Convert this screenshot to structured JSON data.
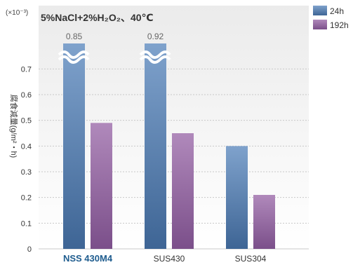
{
  "chart_data": {
    "type": "bar",
    "title": "5%NaCl+2%H₂O₂、40℃",
    "unit_label": "(×10⁻³)",
    "ylabel": "腐食減量(g/m²・h)",
    "ylim": [
      0,
      0.75
    ],
    "yticks": [
      "0",
      "0.1",
      "0.2",
      "0.3",
      "0.4",
      "0.5",
      "0.6",
      "0.7"
    ],
    "grid": true,
    "axis_break": true,
    "legend_position": "top-right",
    "categories": [
      "NSS 430M4",
      "SUS430",
      "SUS304"
    ],
    "highlight_category": "NSS 430M4",
    "series": [
      {
        "name": "24h",
        "values": [
          0.85,
          0.92,
          0.4
        ],
        "colors": [
          "#7fa2cc",
          "#3e6595"
        ]
      },
      {
        "name": "192h",
        "values": [
          0.49,
          0.45,
          0.21
        ],
        "colors": [
          "#b089bb",
          "#7b4f8a"
        ]
      }
    ],
    "data_labels": [
      "0.85",
      "0.92"
    ],
    "colors": {
      "background_top": "#ebebeb",
      "background_bottom": "#ffffff",
      "grid": "#c8c8c8",
      "axis_text": "#333333",
      "highlight_text": "#1e5c8e",
      "break_label": "#666666"
    }
  }
}
